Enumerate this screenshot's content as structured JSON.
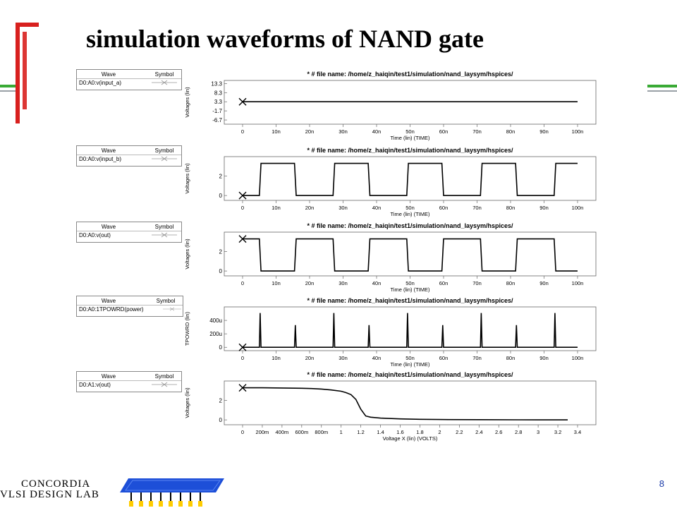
{
  "slide": {
    "title": "simulation waveforms of NAND gate",
    "footer_line1": "CONCORDIA",
    "footer_line2": "VLSI DESIGN LAB",
    "page_number": "8",
    "colors": {
      "accent_red": "#d8201e",
      "accent_green": "#3aaa35",
      "chip_blue": "#1d4fd8",
      "page_number": "#1a3aa8"
    }
  },
  "legend_header": {
    "wave": "Wave",
    "symbol": "Symbol"
  },
  "chart_data": [
    {
      "type": "line",
      "title": "* # file name: /home/z_haiqin/test1/simulation/nand_laysym/hspices/",
      "legend": "D0:A0:v(input_a)",
      "ylabel": "Voltages (lin)",
      "xlabel": "Time (lin) (TIME)",
      "xlim": [
        0,
        100
      ],
      "ylim": [
        -9,
        15
      ],
      "yticks": [
        13.3,
        8.3,
        3.3,
        -1.7,
        -6.7
      ],
      "ytick_labels": [
        "13.3",
        "8.3",
        "3.3",
        "-1.7",
        "-6.7"
      ],
      "xticks": [
        0,
        10,
        20,
        30,
        40,
        50,
        60,
        70,
        80,
        90,
        100
      ],
      "xtick_labels": [
        "0",
        "10n",
        "20n",
        "30n",
        "40n",
        "50n",
        "60n",
        "70n",
        "80n",
        "90n",
        "100n"
      ],
      "series": [
        {
          "x": [
            0,
            100
          ],
          "y": [
            3.3,
            3.3
          ]
        }
      ]
    },
    {
      "type": "line",
      "title": "* # file name: /home/z_haiqin/test1/simulation/nand_laysym/hspices/",
      "legend": "D0:A0:v(input_b)",
      "ylabel": "Voltages (lin)",
      "xlabel": "Time (lin) (TIME)",
      "xlim": [
        0,
        100
      ],
      "ylim": [
        -0.5,
        4
      ],
      "yticks": [
        2,
        0
      ],
      "ytick_labels": [
        "2",
        "0"
      ],
      "xticks": [
        0,
        10,
        20,
        30,
        40,
        50,
        60,
        70,
        80,
        90,
        100
      ],
      "xtick_labels": [
        "0",
        "10n",
        "20n",
        "30n",
        "40n",
        "50n",
        "60n",
        "70n",
        "80n",
        "90n",
        "100n"
      ],
      "series": [
        {
          "x": [
            0,
            5,
            5.5,
            15.5,
            16,
            27,
            27.5,
            37.5,
            38,
            49,
            49.5,
            59.5,
            60,
            71,
            71.5,
            81.5,
            82,
            93,
            93.5,
            100
          ],
          "y": [
            0,
            0,
            3.3,
            3.3,
            0,
            0,
            3.3,
            3.3,
            0,
            0,
            3.3,
            3.3,
            0,
            0,
            3.3,
            3.3,
            0,
            0,
            3.3,
            3.3
          ]
        }
      ]
    },
    {
      "type": "line",
      "title": "* # file name: /home/z_haiqin/test1/simulation/nand_laysym/hspices/",
      "legend": "D0:A0:v(out)",
      "ylabel": "Voltages (lin)",
      "xlabel": "Time (lin) (TIME)",
      "xlim": [
        0,
        100
      ],
      "ylim": [
        -0.5,
        4
      ],
      "yticks": [
        2,
        0
      ],
      "ytick_labels": [
        "2",
        "0"
      ],
      "xticks": [
        0,
        10,
        20,
        30,
        40,
        50,
        60,
        70,
        80,
        90,
        100
      ],
      "xtick_labels": [
        "0",
        "10n",
        "20n",
        "30n",
        "40n",
        "50n",
        "60n",
        "70n",
        "80n",
        "90n",
        "100n"
      ],
      "series": [
        {
          "x": [
            0,
            5,
            5.5,
            15.5,
            16,
            27,
            27.5,
            37.5,
            38,
            49,
            49.5,
            59.5,
            60,
            71,
            71.5,
            81.5,
            82,
            93,
            93.5,
            100
          ],
          "y": [
            3.3,
            3.3,
            0,
            0,
            3.3,
            3.3,
            0,
            0,
            3.3,
            3.3,
            0,
            0,
            3.3,
            3.3,
            0,
            0,
            3.3,
            3.3,
            0,
            0
          ]
        }
      ]
    },
    {
      "type": "line",
      "title": "* # file name: /home/z_haiqin/test1/simulation/nand_laysym/hspices/",
      "legend": "D0:A0:1TPOWRD(power)",
      "ylabel": "TPOWRD (lin)",
      "xlabel": "Time (lin) (TIME)",
      "xlim": [
        0,
        100
      ],
      "ylim": [
        -50,
        600
      ],
      "yticks": [
        400,
        200,
        0
      ],
      "ytick_labels": [
        "400u",
        "200u",
        "0"
      ],
      "xticks": [
        0,
        10,
        20,
        30,
        40,
        50,
        60,
        70,
        80,
        90,
        100
      ],
      "xtick_labels": [
        "0",
        "10n",
        "20n",
        "30n",
        "40n",
        "50n",
        "60n",
        "70n",
        "80n",
        "90n",
        "100n"
      ],
      "series": [
        {
          "x": [
            0,
            5,
            5.25,
            5.5,
            15.5,
            15.75,
            16,
            27,
            27.25,
            27.5,
            37.5,
            37.75,
            38,
            49,
            49.25,
            49.5,
            59.5,
            59.75,
            60,
            71,
            71.25,
            71.5,
            81.5,
            81.75,
            82,
            93,
            93.25,
            93.5,
            100
          ],
          "y": [
            0,
            0,
            510,
            0,
            0,
            330,
            0,
            0,
            510,
            0,
            0,
            330,
            0,
            0,
            510,
            0,
            0,
            330,
            0,
            0,
            510,
            0,
            0,
            330,
            0,
            0,
            510,
            0,
            0
          ]
        }
      ]
    },
    {
      "type": "line",
      "title": "* # file name: /home/z_haiqin/test1/simulation/nand_laysym/hspices/",
      "legend": "D0:A1:v(out)",
      "ylabel": "Voltages (lin)",
      "xlabel": "Voltage X (lin) (VOLTS)",
      "xlim": [
        0,
        3.4
      ],
      "ylim": [
        -0.5,
        4
      ],
      "yticks": [
        2,
        0
      ],
      "ytick_labels": [
        "2",
        "0"
      ],
      "xticks": [
        0,
        0.2,
        0.4,
        0.6,
        0.8,
        1,
        1.2,
        1.4,
        1.6,
        1.8,
        2,
        2.2,
        2.4,
        2.6,
        2.8,
        3,
        3.2,
        3.4
      ],
      "xtick_labels": [
        "0",
        "200m",
        "400m",
        "600m",
        "800m",
        "1",
        "1.2",
        "1.4",
        "1.6",
        "1.8",
        "2",
        "2.2",
        "2.4",
        "2.6",
        "2.8",
        "3",
        "3.2",
        "3.4"
      ],
      "series": [
        {
          "x": [
            0,
            0.2,
            0.4,
            0.6,
            0.7,
            0.8,
            0.9,
            1.0,
            1.05,
            1.1,
            1.15,
            1.2,
            1.25,
            1.3,
            1.4,
            1.6,
            1.8,
            2.0,
            2.4,
            2.8,
            3.3
          ],
          "y": [
            3.3,
            3.3,
            3.28,
            3.25,
            3.22,
            3.17,
            3.08,
            2.95,
            2.8,
            2.6,
            2.1,
            1.1,
            0.4,
            0.28,
            0.18,
            0.1,
            0.06,
            0.04,
            0.02,
            0.01,
            0.0
          ]
        }
      ]
    }
  ]
}
